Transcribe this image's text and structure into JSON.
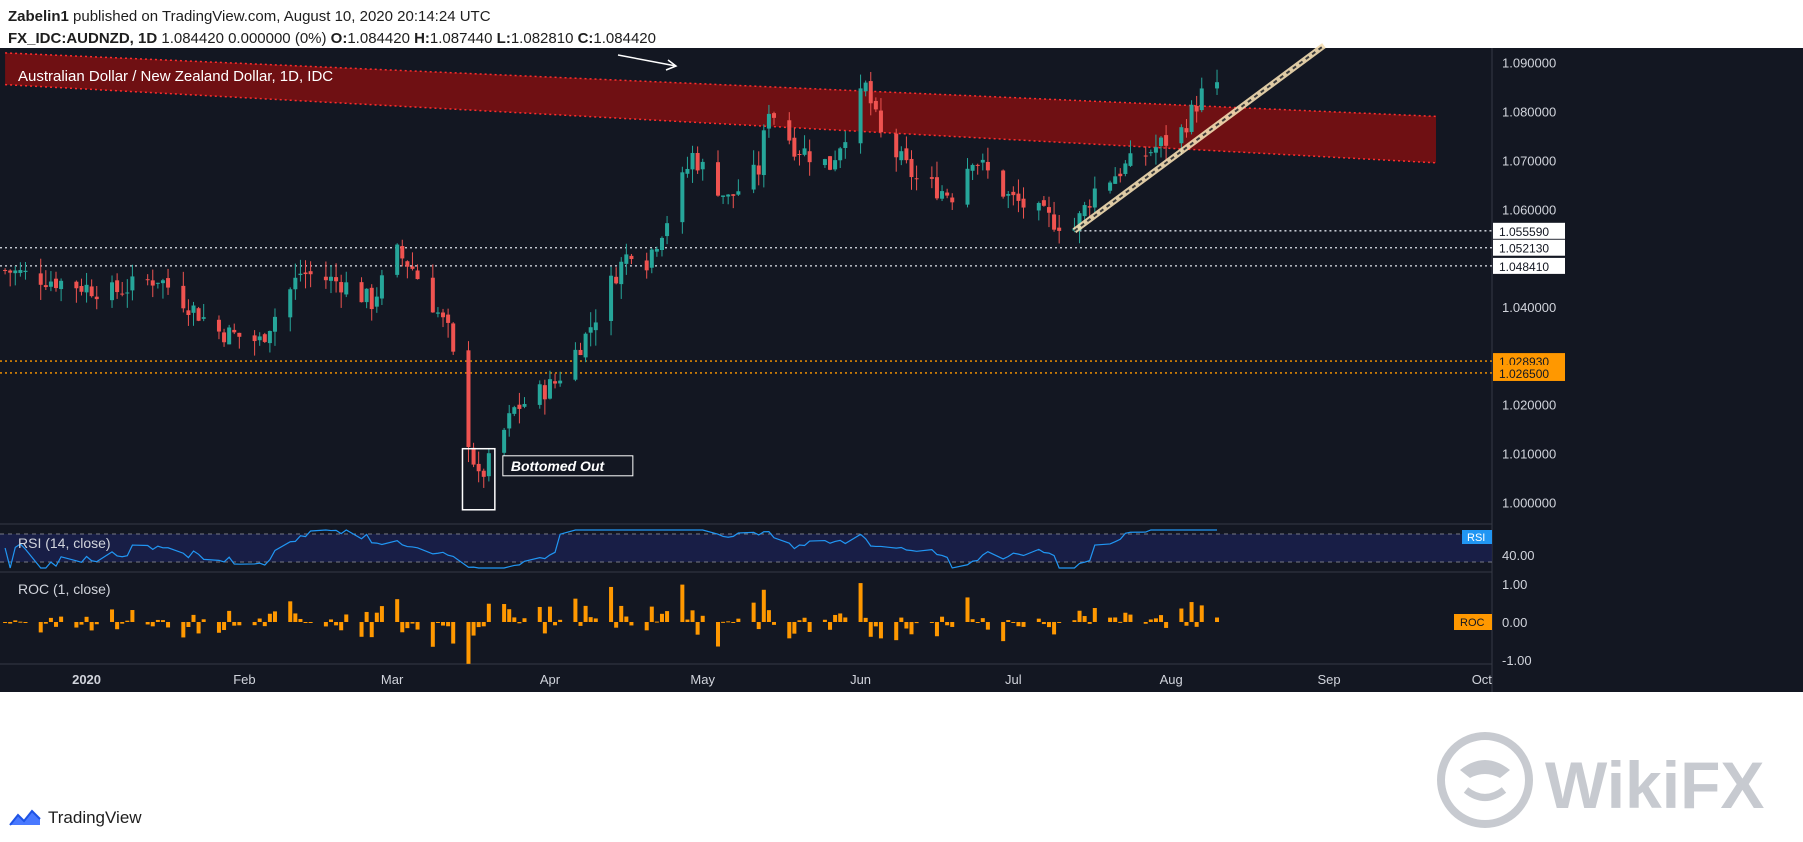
{
  "header": {
    "author": "Zabelin1",
    "published": "published on TradingView.com, August 10, 2020 20:14:24 UTC",
    "symbol": "FX_IDC:AUDNZD, 1D",
    "change": "1.084420 0.000000 (0%)",
    "ohlc_labels": [
      "O:",
      "H:",
      "L:",
      "C:"
    ],
    "ohlc_values": [
      "1.084420",
      "1.087440",
      "1.082810",
      "1.084420"
    ]
  },
  "footer": {
    "brand": "TradingView"
  },
  "watermark": {
    "text": "WikiFX"
  },
  "colors": {
    "background": "#131722",
    "up": "#26a69a",
    "down": "#ef5350",
    "channel": "#7a0f12",
    "orange": "#ff9800",
    "rsi_line": "#2196f3",
    "rsi_band": "#1a2050"
  },
  "chart_data": {
    "type": "candlestick",
    "title": "Australian Dollar / New Zealand Dollar, 1D, IDC",
    "x_labels": [
      {
        "label": "2020",
        "date": "2020-01-01"
      },
      {
        "label": "Feb",
        "date": "2020-02-01"
      },
      {
        "label": "Mar",
        "date": "2020-03-01"
      },
      {
        "label": "Apr",
        "date": "2020-04-01"
      },
      {
        "label": "May",
        "date": "2020-05-01"
      },
      {
        "label": "Jun",
        "date": "2020-06-01"
      },
      {
        "label": "Jul",
        "date": "2020-07-01"
      },
      {
        "label": "Aug",
        "date": "2020-08-01"
      },
      {
        "label": "Sep",
        "date": "2020-09-01"
      },
      {
        "label": "Oct",
        "date": "2020-10-01"
      }
    ],
    "y_ticks": [
      "1.090000",
      "1.080000",
      "1.070000",
      "1.060000",
      "1.040000",
      "1.020000",
      "1.010000",
      "1.000000"
    ],
    "ylim": [
      0.996,
      1.093
    ],
    "price_lines": [
      {
        "label": "1.055590",
        "value": 1.05559,
        "style": "white"
      },
      {
        "label": "1.052130",
        "value": 1.05213,
        "style": "white"
      },
      {
        "label": "1.048410",
        "value": 1.04841,
        "style": "white"
      },
      {
        "label": "1.028930",
        "value": 1.02893,
        "style": "orange"
      },
      {
        "label": "1.026500",
        "value": 1.0265,
        "style": "orange"
      }
    ],
    "annotation": {
      "text": "Bottomed Out",
      "box_dates": [
        "2020-03-16",
        "2020-03-20"
      ],
      "box_range": [
        0.9985,
        1.011
      ]
    },
    "channel": {
      "start": {
        "date": "2019-12-16",
        "upper": 1.092,
        "lower": 1.0855
      },
      "end": {
        "date": "2020-09-22",
        "upper": 1.079,
        "lower": 1.0695
      }
    },
    "trendline": {
      "start": {
        "date": "2020-07-13",
        "value": 1.0556
      },
      "end": {
        "date": "2020-08-31",
        "value": 1.0935
      }
    },
    "anchors": [
      {
        "date": "2019-12-16",
        "value": 1.0475
      },
      {
        "date": "2020-01-06",
        "value": 1.043
      },
      {
        "date": "2020-01-15",
        "value": 1.046
      },
      {
        "date": "2020-01-27",
        "value": 1.035
      },
      {
        "date": "2020-02-04",
        "value": 1.033
      },
      {
        "date": "2020-02-12",
        "value": 1.047
      },
      {
        "date": "2020-02-20",
        "value": 1.045
      },
      {
        "date": "2020-02-26",
        "value": 1.041
      },
      {
        "date": "2020-03-02",
        "value": 1.051
      },
      {
        "date": "2020-03-05",
        "value": 1.048
      },
      {
        "date": "2020-03-12",
        "value": 1.035
      },
      {
        "date": "2020-03-16",
        "value": 1.013
      },
      {
        "date": "2020-03-18",
        "value": 1.0045
      },
      {
        "date": "2020-03-20",
        "value": 1.008
      },
      {
        "date": "2020-03-25",
        "value": 1.019
      },
      {
        "date": "2020-04-02",
        "value": 1.0245
      },
      {
        "date": "2020-04-08",
        "value": 1.034
      },
      {
        "date": "2020-04-14",
        "value": 1.047
      },
      {
        "date": "2020-04-17",
        "value": 1.052
      },
      {
        "date": "2020-04-20",
        "value": 1.0495
      },
      {
        "date": "2020-04-24",
        "value": 1.058
      },
      {
        "date": "2020-04-29",
        "value": 1.071
      },
      {
        "date": "2020-05-06",
        "value": 1.062
      },
      {
        "date": "2020-05-12",
        "value": 1.068
      },
      {
        "date": "2020-05-14",
        "value": 1.081
      },
      {
        "date": "2020-05-19",
        "value": 1.073
      },
      {
        "date": "2020-05-26",
        "value": 1.069
      },
      {
        "date": "2020-06-02",
        "value": 1.085
      },
      {
        "date": "2020-06-05",
        "value": 1.075
      },
      {
        "date": "2020-06-12",
        "value": 1.066
      },
      {
        "date": "2020-06-19",
        "value": 1.063
      },
      {
        "date": "2020-06-23",
        "value": 1.071
      },
      {
        "date": "2020-06-30",
        "value": 1.0625
      },
      {
        "date": "2020-07-08",
        "value": 1.058
      },
      {
        "date": "2020-07-13",
        "value": 1.0562
      },
      {
        "date": "2020-07-17",
        "value": 1.064
      },
      {
        "date": "2020-07-22",
        "value": 1.068
      },
      {
        "date": "2020-07-28",
        "value": 1.072
      },
      {
        "date": "2020-08-03",
        "value": 1.076
      },
      {
        "date": "2020-08-07",
        "value": 1.0835
      },
      {
        "date": "2020-08-10",
        "value": 1.0844
      }
    ],
    "rsi": {
      "label": "RSI (14, close)",
      "tick": "40.00",
      "badge": "RSI",
      "bands": [
        70,
        30
      ]
    },
    "roc": {
      "label": "ROC (1, close)",
      "ticks": [
        "1.00",
        "0.00",
        "-1.00"
      ],
      "badge": "ROC"
    }
  }
}
